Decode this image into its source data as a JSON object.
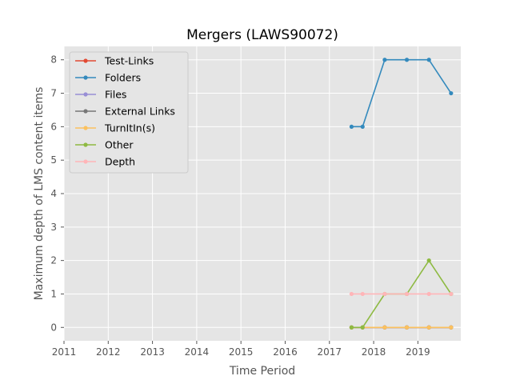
{
  "chart_data": {
    "type": "line",
    "title": "Mergers (LAWS90072)",
    "xlabel": "Time Period",
    "ylabel": "Maximum depth of LMS content items",
    "xlim": [
      2011.0,
      2019.97
    ],
    "ylim": [
      -0.4,
      8.4
    ],
    "x_ticks": [
      2011,
      2012,
      2013,
      2014,
      2015,
      2016,
      2017,
      2018,
      2019
    ],
    "x_tick_labels": [
      "2011",
      "2012",
      "2013",
      "2014",
      "2015",
      "2016",
      "2017",
      "2018",
      "2019"
    ],
    "y_ticks": [
      0,
      1,
      2,
      3,
      4,
      5,
      6,
      7,
      8
    ],
    "y_tick_labels": [
      "0",
      "1",
      "2",
      "3",
      "4",
      "5",
      "6",
      "7",
      "8"
    ],
    "grid": true,
    "legend_position": "top-left",
    "x": [
      2017.5,
      2017.75,
      2018.25,
      2018.75,
      2019.25,
      2019.75
    ],
    "series": [
      {
        "name": "Test-Links",
        "color": "#e24a33",
        "values": [
          0,
          0,
          0,
          0,
          0,
          0
        ]
      },
      {
        "name": "Folders",
        "color": "#348abd",
        "values": [
          6,
          6,
          8,
          8,
          8,
          7
        ]
      },
      {
        "name": "Files",
        "color": "#988ed5",
        "values": [
          0,
          0,
          0,
          0,
          0,
          0
        ]
      },
      {
        "name": "External Links",
        "color": "#777777",
        "values": [
          0,
          0,
          0,
          0,
          0,
          0
        ]
      },
      {
        "name": "TurnItIn(s)",
        "color": "#fbc15e",
        "values": [
          0,
          0,
          0,
          0,
          0,
          0
        ]
      },
      {
        "name": "Other",
        "color": "#8eba42",
        "values": [
          0,
          0,
          1,
          1,
          2,
          1
        ]
      },
      {
        "name": "Depth",
        "color": "#ffb5b8",
        "values": [
          1,
          1,
          1,
          1,
          1,
          1
        ]
      }
    ]
  }
}
